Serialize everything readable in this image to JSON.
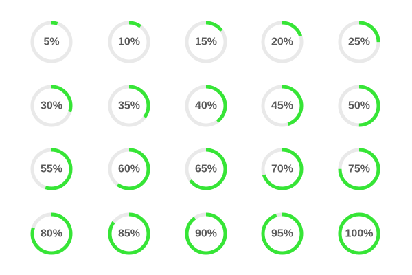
{
  "colors": {
    "track": "#e9e9e9",
    "progress": "#36e536",
    "label": "#5a5a5a",
    "background": "#ffffff"
  },
  "indicators": [
    {
      "label": "5%",
      "value": 5
    },
    {
      "label": "10%",
      "value": 10
    },
    {
      "label": "15%",
      "value": 15
    },
    {
      "label": "20%",
      "value": 20
    },
    {
      "label": "25%",
      "value": 25
    },
    {
      "label": "30%",
      "value": 30
    },
    {
      "label": "35%",
      "value": 35
    },
    {
      "label": "40%",
      "value": 40
    },
    {
      "label": "45%",
      "value": 45
    },
    {
      "label": "50%",
      "value": 50
    },
    {
      "label": "55%",
      "value": 55
    },
    {
      "label": "60%",
      "value": 60
    },
    {
      "label": "65%",
      "value": 65
    },
    {
      "label": "70%",
      "value": 70
    },
    {
      "label": "75%",
      "value": 75
    },
    {
      "label": "80%",
      "value": 80
    },
    {
      "label": "85%",
      "value": 85
    },
    {
      "label": "90%",
      "value": 90
    },
    {
      "label": "95%",
      "value": 95
    },
    {
      "label": "100%",
      "value": 100
    }
  ]
}
